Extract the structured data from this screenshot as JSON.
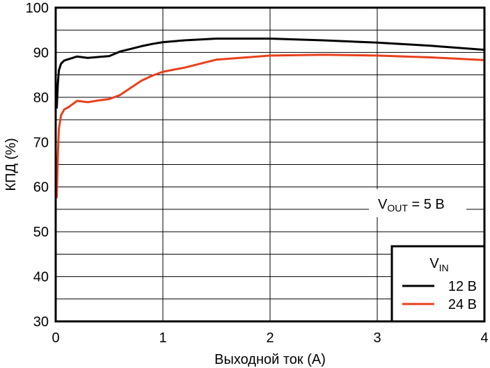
{
  "chart_data": {
    "type": "line",
    "xlabel": "Выходной ток (A)",
    "ylabel": "КПД (%)",
    "xlim": [
      0,
      4
    ],
    "ylim": [
      30,
      100
    ],
    "x_ticks": [
      "0",
      "1",
      "2",
      "3",
      "4"
    ],
    "y_ticks": [
      "30",
      "40",
      "50",
      "60",
      "70",
      "80",
      "90",
      "100"
    ],
    "x_tick_values": [
      0,
      1,
      2,
      3,
      4
    ],
    "y_tick_values": [
      30,
      40,
      50,
      60,
      70,
      80,
      90,
      100
    ],
    "grid": true,
    "legend_position": "bottom-right",
    "legend_title": {
      "main": "V",
      "sub": "IN"
    },
    "annotation": {
      "prefix": "V",
      "sub": "OUT",
      "suffix": " = 5 В",
      "position": "right-middle"
    },
    "series": [
      {
        "name": "12 В",
        "color": "#000000",
        "points": [
          [
            0.01,
            77.5
          ],
          [
            0.02,
            83
          ],
          [
            0.03,
            86
          ],
          [
            0.05,
            87.5
          ],
          [
            0.08,
            88.2
          ],
          [
            0.12,
            88.5
          ],
          [
            0.2,
            89.1
          ],
          [
            0.3,
            88.8
          ],
          [
            0.4,
            89
          ],
          [
            0.5,
            89.2
          ],
          [
            0.6,
            90.2
          ],
          [
            0.7,
            90.8
          ],
          [
            0.8,
            91.4
          ],
          [
            0.9,
            91.9
          ],
          [
            1.0,
            92.3
          ],
          [
            1.2,
            92.7
          ],
          [
            1.5,
            93.1
          ],
          [
            2.0,
            93.1
          ],
          [
            2.5,
            92.7
          ],
          [
            3.0,
            92.2
          ],
          [
            3.5,
            91.5
          ],
          [
            4.0,
            90.6
          ]
        ]
      },
      {
        "name": "24 В",
        "color": "#e8401c",
        "points": [
          [
            0.01,
            57.5
          ],
          [
            0.02,
            67
          ],
          [
            0.03,
            73
          ],
          [
            0.05,
            76
          ],
          [
            0.08,
            77.3
          ],
          [
            0.12,
            77.8
          ],
          [
            0.2,
            79.2
          ],
          [
            0.3,
            78.9
          ],
          [
            0.4,
            79.3
          ],
          [
            0.5,
            79.6
          ],
          [
            0.6,
            80.5
          ],
          [
            0.7,
            82.1
          ],
          [
            0.8,
            83.7
          ],
          [
            0.9,
            84.8
          ],
          [
            1.0,
            85.7
          ],
          [
            1.2,
            86.6
          ],
          [
            1.5,
            88.4
          ],
          [
            2.0,
            89.3
          ],
          [
            2.5,
            89.5
          ],
          [
            3.0,
            89.3
          ],
          [
            3.5,
            88.9
          ],
          [
            4.0,
            88.3
          ]
        ]
      }
    ]
  }
}
